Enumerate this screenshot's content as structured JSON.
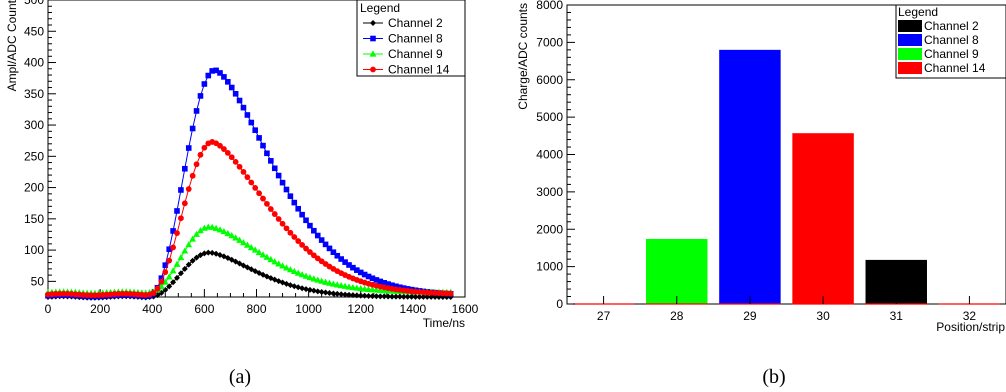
{
  "chart_data": [
    {
      "panel_label": "(a)",
      "type": "line",
      "xlabel": "Time/ns",
      "ylabel": "Ampl/ADC Count",
      "xlim": [
        0,
        1600
      ],
      "ylim": [
        25,
        500
      ],
      "x_ticks": [
        0,
        200,
        400,
        600,
        800,
        1000,
        1200,
        1400,
        1600
      ],
      "y_ticks": [
        50,
        100,
        150,
        200,
        250,
        300,
        350,
        400,
        450,
        500
      ],
      "grid": false,
      "legend": {
        "title": "Legend",
        "placement": "top-right"
      },
      "series": [
        {
          "name": "Channel 2",
          "color": "#000000",
          "marker": "plus-filled",
          "baseline": 25,
          "peak": 96,
          "peak_x": 620,
          "rise": 120,
          "decay": 260,
          "start": 390
        },
        {
          "name": "Channel 8",
          "color": "#0000ff",
          "marker": "square",
          "baseline": 27,
          "peak": 388,
          "peak_x": 640,
          "rise": 110,
          "decay": 330,
          "start": 390
        },
        {
          "name": "Channel 9",
          "color": "#00ff00",
          "marker": "triangle",
          "baseline": 32,
          "peak": 137,
          "peak_x": 620,
          "rise": 120,
          "decay": 300,
          "start": 390
        },
        {
          "name": "Channel 14",
          "color": "#ff0000",
          "marker": "circle",
          "baseline": 29,
          "peak": 273,
          "peak_x": 630,
          "rise": 115,
          "decay": 320,
          "start": 390
        }
      ],
      "x_step": 15,
      "x_max_point": 1545
    },
    {
      "panel_label": "(b)",
      "type": "bar",
      "xlabel": "Position/strip",
      "ylabel": "Charge/ADC counts",
      "xlim": [
        26.5,
        32.5
      ],
      "ylim": [
        0,
        8000
      ],
      "x_ticks": [
        27,
        28,
        29,
        30,
        31,
        32
      ],
      "y_ticks": [
        0,
        1000,
        2000,
        3000,
        4000,
        5000,
        6000,
        7000,
        8000
      ],
      "grid": false,
      "legend": {
        "title": "Legend",
        "placement": "top-right"
      },
      "series": [
        {
          "name": "Channel 2",
          "color": "#000000",
          "position": 31,
          "value": 1180
        },
        {
          "name": "Channel 8",
          "color": "#0000ff",
          "position": 29,
          "value": 6800
        },
        {
          "name": "Channel 9",
          "color": "#00ff00",
          "position": 28,
          "value": 1740
        },
        {
          "name": "Channel 14",
          "color": "#ff0000",
          "position": 30,
          "value": 4570
        }
      ]
    }
  ]
}
